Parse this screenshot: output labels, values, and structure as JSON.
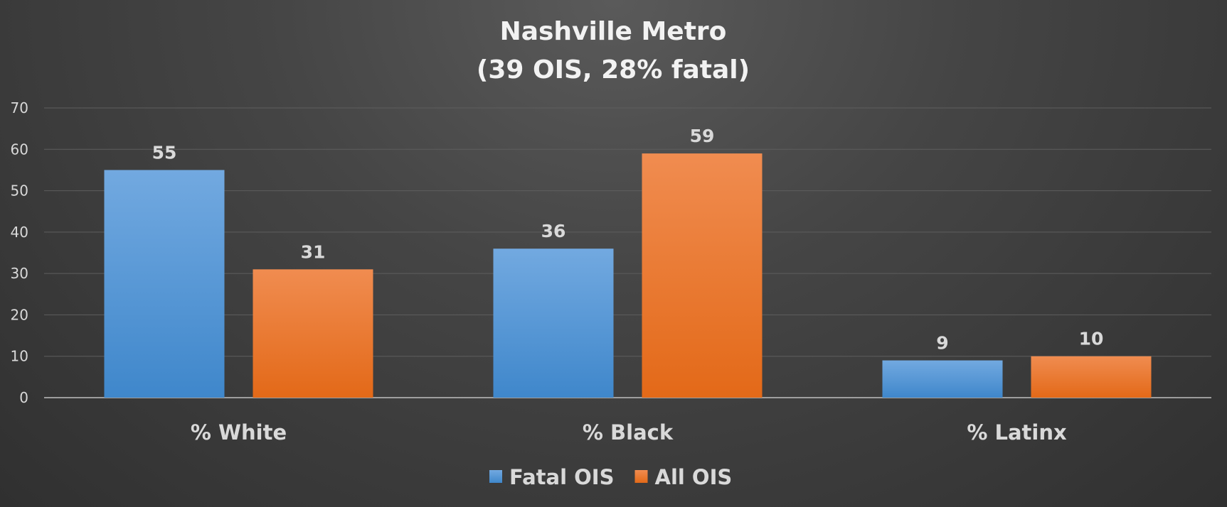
{
  "chart_data": {
    "type": "bar",
    "title": "Nashville Metro",
    "subtitle": "(39 OIS, 28% fatal)",
    "categories": [
      "% White",
      "% Black",
      "% Latinx"
    ],
    "series": [
      {
        "name": "Fatal OIS",
        "values": [
          55,
          36,
          9
        ],
        "color": "#5b9bd5"
      },
      {
        "name": "All OIS",
        "values": [
          31,
          59,
          10
        ],
        "color": "#ed7d31"
      }
    ],
    "yticks": [
      0,
      10,
      20,
      30,
      40,
      50,
      60,
      70
    ],
    "ylim": [
      0,
      70
    ],
    "grid": true,
    "legend_position": "bottom"
  }
}
